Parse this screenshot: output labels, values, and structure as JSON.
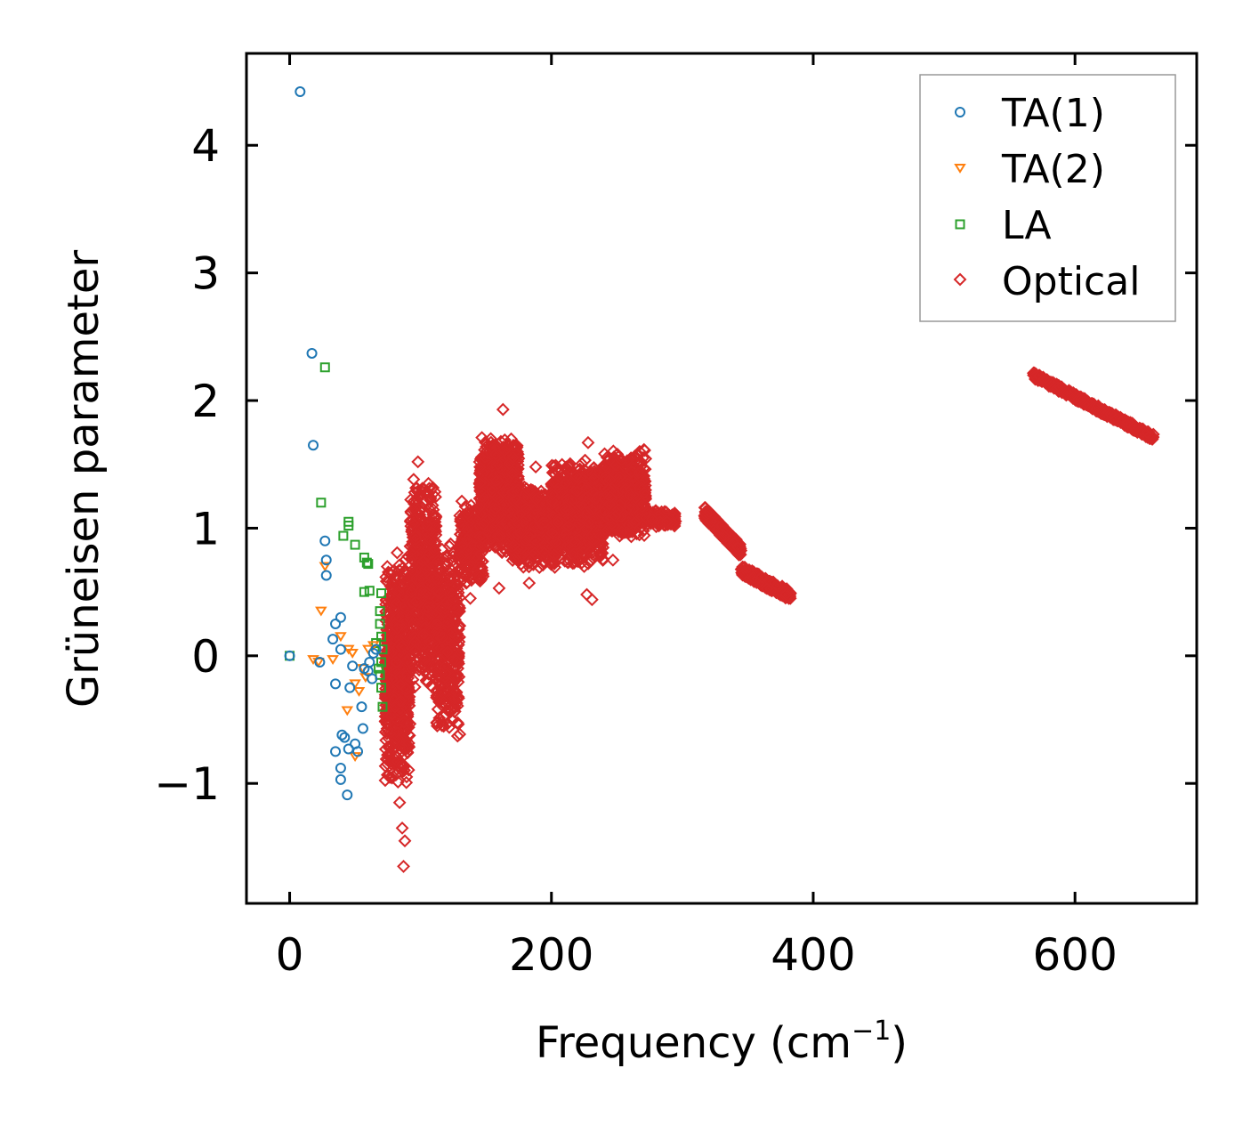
{
  "chart_data": {
    "type": "scatter",
    "xlabel": "Frequency (cm",
    "xlabel_sup": "−1",
    "xlabel_end": ")",
    "ylabel": "Grüneisen parameter",
    "xlim": [
      -33,
      693
    ],
    "ylim": [
      -1.94,
      4.72
    ],
    "x_ticks": [
      0,
      200,
      400,
      600
    ],
    "x_tick_labels": [
      "0",
      "200",
      "400",
      "600"
    ],
    "y_ticks": [
      -1,
      0,
      1,
      2,
      3,
      4
    ],
    "y_tick_labels": [
      "−1",
      "0",
      "1",
      "2",
      "3",
      "4"
    ],
    "legend_position": "top-right",
    "series": [
      {
        "name": "TA(1)",
        "marker": "circle",
        "color": "#1f77b4",
        "points": [
          [
            8,
            4.42
          ],
          [
            17,
            2.37
          ],
          [
            18,
            1.65
          ],
          [
            27,
            0.9
          ],
          [
            28,
            0.75
          ],
          [
            28,
            0.63
          ],
          [
            0,
            0.0
          ],
          [
            23,
            -0.05
          ],
          [
            33,
            0.13
          ],
          [
            35,
            0.25
          ],
          [
            39,
            0.3
          ],
          [
            39,
            0.05
          ],
          [
            35,
            -0.22
          ],
          [
            46,
            -0.25
          ],
          [
            48,
            -0.08
          ],
          [
            55,
            -0.4
          ],
          [
            56,
            -0.57
          ],
          [
            40,
            -0.62
          ],
          [
            42,
            -0.64
          ],
          [
            45,
            -0.73
          ],
          [
            50,
            -0.69
          ],
          [
            52,
            -0.75
          ],
          [
            35,
            -0.75
          ],
          [
            39,
            -0.88
          ],
          [
            39,
            -0.97
          ],
          [
            44,
            -1.09
          ],
          [
            57,
            -0.1
          ],
          [
            61,
            -0.05
          ],
          [
            64,
            0.02
          ],
          [
            66,
            0.05
          ],
          [
            60,
            -0.12
          ],
          [
            63,
            -0.18
          ]
        ]
      },
      {
        "name": "TA(2)",
        "marker": "triangle-down",
        "color": "#ff7f0e",
        "points": [
          [
            27,
            0.7
          ],
          [
            24,
            0.35
          ],
          [
            18,
            -0.03
          ],
          [
            22,
            -0.05
          ],
          [
            33,
            -0.03
          ],
          [
            39,
            0.15
          ],
          [
            45,
            0.05
          ],
          [
            48,
            0.02
          ],
          [
            50,
            -0.22
          ],
          [
            53,
            -0.28
          ],
          [
            44,
            -0.43
          ],
          [
            50,
            -0.79
          ],
          [
            56,
            -0.1
          ],
          [
            60,
            0.05
          ],
          [
            64,
            0.08
          ],
          [
            58,
            -0.17
          ]
        ]
      },
      {
        "name": "LA",
        "marker": "square",
        "color": "#2ca02c",
        "points": [
          [
            0,
            0.0
          ],
          [
            27,
            2.26
          ],
          [
            24,
            1.2
          ],
          [
            45,
            1.05
          ],
          [
            45,
            1.02
          ],
          [
            41,
            0.94
          ],
          [
            50,
            0.87
          ],
          [
            57,
            0.77
          ],
          [
            59,
            0.73
          ],
          [
            60,
            0.72
          ],
          [
            57,
            0.5
          ],
          [
            61,
            0.51
          ],
          [
            70,
            0.49
          ],
          [
            69,
            0.35
          ],
          [
            69,
            0.25
          ],
          [
            70,
            0.15
          ],
          [
            71,
            0.05
          ],
          [
            70,
            -0.05
          ],
          [
            69,
            -0.15
          ],
          [
            70,
            -0.25
          ],
          [
            71,
            -0.4
          ],
          [
            68,
            -0.1
          ],
          [
            66,
            0.1
          ]
        ]
      },
      {
        "name": "Optical",
        "marker": "diamond",
        "color": "#d62728",
        "points": [
          [
            163,
            1.93
          ],
          [
            98,
            1.52
          ],
          [
            188,
            1.48
          ],
          [
            228,
            1.67
          ],
          [
            87,
            -1.65
          ],
          [
            84,
            -1.15
          ],
          [
            86,
            -1.35
          ],
          [
            88,
            -1.45
          ],
          [
            227,
            0.48
          ],
          [
            231,
            0.44
          ],
          [
            138,
            0.45
          ],
          [
            270,
            1.55
          ],
          [
            160,
            0.53
          ],
          [
            183,
            0.57
          ],
          [
            225,
            0.7
          ],
          [
            247,
            0.75
          ]
        ],
        "clusters": [
          {
            "x": [
              73,
              92
            ],
            "y": [
              -1.05,
              0.85
            ],
            "n": 700
          },
          {
            "x": [
              92,
              112
            ],
            "y": [
              -0.3,
              1.42
            ],
            "n": 550
          },
          {
            "x": [
              112,
              130
            ],
            "y": [
              -0.7,
              0.95
            ],
            "n": 400
          },
          {
            "x": [
              130,
              148
            ],
            "y": [
              0.5,
              1.25
            ],
            "n": 250
          },
          {
            "x": [
              145,
              175
            ],
            "y": [
              0.8,
              1.72
            ],
            "n": 900
          },
          {
            "x": [
              170,
              205
            ],
            "y": [
              0.65,
              1.35
            ],
            "n": 700
          },
          {
            "x": [
              200,
              240
            ],
            "y": [
              0.7,
              1.55
            ],
            "n": 1000
          },
          {
            "x": [
              240,
              272
            ],
            "y": [
              0.9,
              1.62
            ],
            "n": 800
          },
          {
            "x": [
              272,
              295
            ],
            "y": [
              1.0,
              1.15
            ],
            "n": 120
          }
        ],
        "bands": [
          {
            "x": [
              317,
              345
            ],
            "y": [
              1.12,
              0.82
            ],
            "w": 0.1,
            "n": 220
          },
          {
            "x": [
              345,
              383
            ],
            "y": [
              0.67,
              0.47
            ],
            "w": 0.08,
            "n": 220
          },
          {
            "x": [
              568,
              660
            ],
            "y": [
              2.2,
              1.71
            ],
            "w": 0.05,
            "n": 450
          }
        ]
      }
    ]
  }
}
